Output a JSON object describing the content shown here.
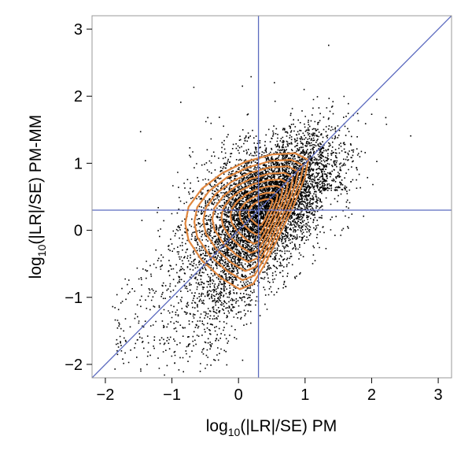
{
  "chart_data": {
    "type": "scatter",
    "title": "",
    "xlabel": {
      "prefix": "log",
      "sub": "10",
      "suffix": "(|LR|/SE) PM"
    },
    "ylabel": {
      "prefix": "log",
      "sub": "10",
      "suffix": "(|LR|/SE) PM-MM"
    },
    "xlim": [
      -2.2,
      3.2
    ],
    "ylim": [
      -2.2,
      3.2
    ],
    "x_ticks": [
      -2,
      -1,
      0,
      1,
      2,
      3
    ],
    "y_ticks": [
      -2,
      -1,
      0,
      1,
      2,
      3
    ],
    "x_tick_labels": [
      "−2",
      "−1",
      "0",
      "1",
      "2",
      "3"
    ],
    "y_tick_labels": [
      "−2",
      "−1",
      "0",
      "1",
      "2",
      "3"
    ],
    "grid": false,
    "reference_lines": {
      "diagonal": "y = x",
      "vertical_x": 0.3,
      "horizontal_y": 0.3
    },
    "scatter_cloud": {
      "description_points_sampled": true,
      "center": [
        0.35,
        0.3
      ],
      "outlier_points": [
        [
          0.18,
          2.3
        ],
        [
          0.53,
          2.21
        ],
        [
          0.05,
          2.16
        ],
        [
          1.87,
          0.22
        ],
        [
          1.78,
          1.75
        ],
        [
          -1.48,
          1.48
        ],
        [
          -1.7,
          -1.65
        ],
        [
          -1.2,
          -2.05
        ],
        [
          -0.5,
          1.63
        ]
      ]
    },
    "density_contours": {
      "color": "#e0873f",
      "levels": 8,
      "outer_contour": [
        [
          -0.8,
          0.1
        ],
        [
          -0.75,
          0.35
        ],
        [
          -0.55,
          0.62
        ],
        [
          -0.25,
          0.85
        ],
        [
          0.1,
          1.02
        ],
        [
          0.5,
          1.13
        ],
        [
          0.85,
          1.15
        ],
        [
          1.05,
          1.05
        ],
        [
          1.0,
          0.8
        ],
        [
          0.82,
          0.35
        ],
        [
          0.6,
          -0.1
        ],
        [
          0.4,
          -0.5
        ],
        [
          0.22,
          -0.8
        ],
        [
          0.02,
          -0.88
        ],
        [
          -0.25,
          -0.72
        ],
        [
          -0.55,
          -0.45
        ],
        [
          -0.75,
          -0.15
        ]
      ]
    },
    "colors": {
      "points": "#000000",
      "reference_lines": "#5b6abf",
      "contours": "#e0873f",
      "frame": "#999999"
    }
  }
}
